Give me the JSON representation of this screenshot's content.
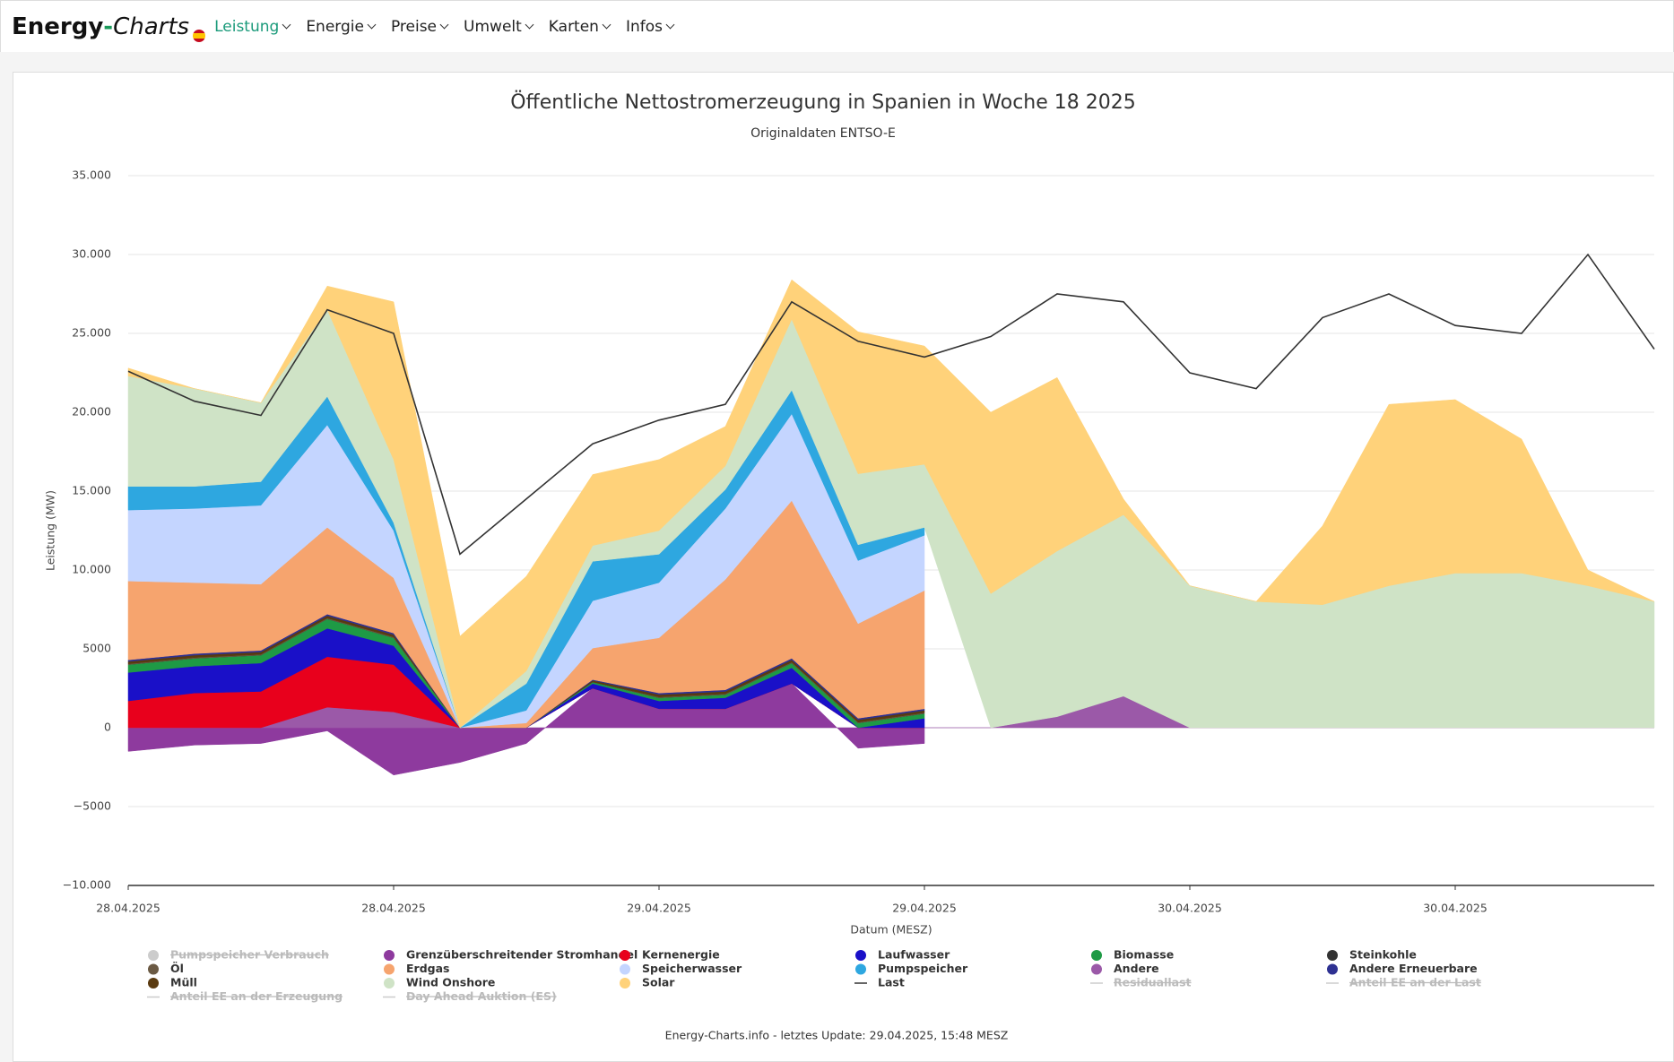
{
  "nav": {
    "logo": [
      "Energy",
      "-",
      "Charts"
    ],
    "items": [
      "Leistung",
      "Energie",
      "Preise",
      "Umwelt",
      "Karten",
      "Infos"
    ]
  },
  "chart_data": {
    "type": "area",
    "title": "Öffentliche Nettostromerzeugung in Spanien in Woche 18 2025",
    "subtitle": "Originaldaten ENTSO-E",
    "x_label": "Datum (MESZ)",
    "y_label": "Leistung (MW)",
    "x": [
      0,
      3,
      6,
      9,
      12,
      15,
      18,
      21,
      24,
      27,
      30,
      33,
      36,
      39,
      42,
      45,
      48,
      51,
      54,
      57,
      60,
      63,
      66,
      69
    ],
    "xlim": [
      0,
      69
    ],
    "xticks": [
      {
        "value": 0,
        "label": "28.04.2025"
      },
      {
        "value": 12,
        "label": "28.04.2025"
      },
      {
        "value": 24,
        "label": "29.04.2025"
      },
      {
        "value": 36,
        "label": "29.04.2025"
      },
      {
        "value": 48,
        "label": "30.04.2025"
      },
      {
        "value": 60,
        "label": "30.04.2025"
      }
    ],
    "ylim": [
      -10000,
      35000
    ],
    "yticks": [
      {
        "value": 35000,
        "label": "35.000"
      },
      {
        "value": 30000,
        "label": "30.000"
      },
      {
        "value": 25000,
        "label": "25.000"
      },
      {
        "value": 20000,
        "label": "20.000"
      },
      {
        "value": 15000,
        "label": "15.000"
      },
      {
        "value": 10000,
        "label": "10.000"
      },
      5000,
      0,
      {
        "value": -5000,
        "label": "−5000"
      },
      {
        "value": -10000,
        "label": "−10.000"
      }
    ],
    "grid": true,
    "stacked": true,
    "series": [
      {
        "name": "Pumpspeicher Verbrauch",
        "color": "#cccccc",
        "hidden": true
      },
      {
        "name": "Grenzüberschreitender Stromhandel",
        "color": "#8e3a9e",
        "values": [
          -1500,
          -1100,
          -1000,
          -200,
          -3000,
          -2200,
          -1000,
          2500,
          1200,
          1200,
          2800,
          -1300,
          -1000,
          null,
          null,
          null,
          null,
          null,
          null,
          null,
          null,
          null,
          null,
          null
        ]
      },
      {
        "name": "Kernenergie",
        "color": "#e8001c",
        "values": [
          1700,
          2200,
          2300,
          3200,
          3000,
          0,
          0,
          0,
          0,
          0,
          0,
          0,
          0,
          null,
          null,
          null,
          null,
          null,
          null,
          null,
          null,
          null,
          null,
          null
        ]
      },
      {
        "name": "Laufwasser",
        "color": "#1a10c8",
        "values": [
          1800,
          1700,
          1800,
          1800,
          1200,
          0,
          0,
          300,
          500,
          700,
          1000,
          0,
          600,
          null,
          null,
          null,
          null,
          null,
          null,
          null,
          null,
          null,
          null,
          null
        ]
      },
      {
        "name": "Biomasse",
        "color": "#1e9a45",
        "values": [
          500,
          500,
          500,
          600,
          500,
          0,
          0,
          100,
          200,
          200,
          300,
          300,
          300,
          null,
          null,
          null,
          null,
          null,
          null,
          null,
          null,
          null,
          null,
          null
        ]
      },
      {
        "name": "Steinkohle",
        "color": "#333333",
        "values": [
          0,
          0,
          0,
          0,
          0,
          0,
          0,
          0,
          0,
          0,
          0,
          0,
          0,
          null,
          null,
          null,
          null,
          null,
          null,
          null,
          null,
          null,
          null,
          null
        ]
      },
      {
        "name": "Öl",
        "color": "#6b5a44",
        "values": [
          50,
          50,
          50,
          50,
          50,
          0,
          0,
          0,
          50,
          50,
          50,
          50,
          50,
          null,
          null,
          null,
          null,
          null,
          null,
          null,
          null,
          null,
          null,
          null
        ]
      },
      {
        "name": "Erdgas",
        "color": "#f6a46e",
        "values": [
          5000,
          4500,
          4200,
          5500,
          3500,
          0,
          300,
          2000,
          3500,
          7000,
          10000,
          6000,
          7500,
          null,
          null,
          null,
          null,
          null,
          null,
          null,
          null,
          null,
          null,
          null
        ]
      },
      {
        "name": "Speicherwasser",
        "color": "#c4d5ff",
        "values": [
          4500,
          4700,
          5000,
          6500,
          3000,
          0,
          800,
          3000,
          3500,
          4500,
          5500,
          4000,
          3500,
          null,
          null,
          null,
          null,
          null,
          null,
          null,
          null,
          null,
          null,
          null
        ]
      },
      {
        "name": "Pumpspeicher",
        "color": "#2ea7e0",
        "values": [
          1500,
          1400,
          1500,
          1800,
          500,
          0,
          1700,
          2500,
          1800,
          1200,
          1500,
          1000,
          500,
          null,
          null,
          null,
          null,
          null,
          null,
          null,
          null,
          null,
          null,
          null
        ]
      },
      {
        "name": "Andere",
        "color": "#9b59a8",
        "values": [
          0,
          0,
          0,
          1300,
          1000,
          0,
          0,
          0,
          0,
          0,
          0,
          0,
          0,
          0,
          700,
          2000,
          0,
          0,
          0,
          0,
          0,
          0,
          0,
          0
        ]
      },
      {
        "name": "Andere Erneuerbare",
        "color": "#2e3192",
        "values": [
          100,
          100,
          100,
          100,
          100,
          0,
          0,
          50,
          100,
          100,
          100,
          100,
          100,
          null,
          null,
          null,
          null,
          null,
          null,
          null,
          null,
          null,
          null,
          null
        ]
      },
      {
        "name": "Müll",
        "color": "#5a3a10",
        "values": [
          150,
          150,
          150,
          150,
          150,
          0,
          0,
          100,
          150,
          150,
          150,
          150,
          150,
          null,
          null,
          null,
          null,
          null,
          null,
          null,
          null,
          null,
          null,
          null
        ]
      },
      {
        "name": "Wind Onshore",
        "color": "#cfe3c6",
        "values": [
          7000,
          6200,
          5000,
          5500,
          4000,
          0,
          800,
          1000,
          1500,
          1500,
          4500,
          4500,
          4000,
          8500,
          10500,
          11500,
          9000,
          8000,
          7800,
          9000,
          9800,
          9800,
          9000,
          8000
        ]
      },
      {
        "name": "Solar",
        "color": "#ffd27a",
        "values": [
          500,
          0,
          0,
          1500,
          10000,
          5800,
          6000,
          4500,
          4500,
          2500,
          2500,
          9000,
          7500,
          11500,
          11000,
          1000,
          0,
          0,
          5000,
          11500,
          11000,
          8500,
          1000,
          0
        ]
      },
      {
        "name": "Last",
        "color": "#333333",
        "type": "line",
        "values": [
          22600,
          20700,
          19800,
          26500,
          25000,
          11000,
          14500,
          18000,
          19500,
          20500,
          27000,
          24500,
          23500,
          24800,
          27500,
          27000,
          22500,
          21500,
          26000,
          27500,
          25500,
          25000,
          30000,
          24000
        ]
      },
      {
        "name": "Residuallast",
        "color": "#cccccc",
        "type": "line",
        "hidden": true
      },
      {
        "name": "Anteil EE an der Last",
        "color": "#cccccc",
        "type": "line",
        "hidden": true
      },
      {
        "name": "Anteil EE an der Erzeugung",
        "color": "#cccccc",
        "type": "line",
        "hidden": true
      },
      {
        "name": "Day Ahead Auktion (ES)",
        "color": "#cccccc",
        "type": "line",
        "hidden": true
      }
    ]
  },
  "footer": "Energy-Charts.info - letztes Update: 29.04.2025, 15:48 MESZ"
}
